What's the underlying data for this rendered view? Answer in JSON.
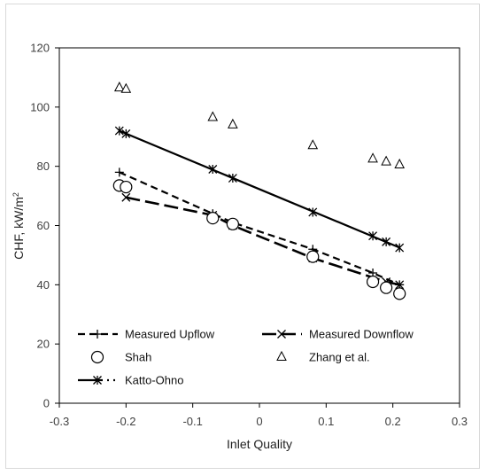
{
  "chart_data": {
    "type": "scatter",
    "title": "",
    "xlabel": "Inlet Quality",
    "ylabel": "CHF, kW/m",
    "ylabel_superscript": "2",
    "xlim": [
      -0.3,
      0.3
    ],
    "ylim": [
      0,
      120
    ],
    "xticks": [
      -0.3,
      -0.2,
      -0.1,
      0,
      0.1,
      0.2,
      0.3
    ],
    "xtick_labels": [
      "-0.3",
      "-0.2",
      "-0.1",
      "0",
      "0.1",
      "0.2",
      "0.3"
    ],
    "yticks": [
      0,
      20,
      40,
      60,
      80,
      100,
      120
    ],
    "ytick_labels": [
      "0",
      "20",
      "40",
      "60",
      "80",
      "100",
      "120"
    ],
    "grid": false,
    "legend_position": "bottom-inside",
    "series": [
      {
        "name": "Measured Upflow",
        "style": "short-dash-line-plus",
        "x": [
          -0.21,
          -0.07,
          -0.04,
          0.08,
          0.17,
          0.21
        ],
        "y": [
          78,
          64,
          61,
          52,
          44,
          40
        ]
      },
      {
        "name": "Measured Downflow",
        "style": "long-dash-line-x",
        "x": [
          -0.2,
          -0.07,
          -0.04,
          0.08,
          0.19,
          0.21
        ],
        "y": [
          69.5,
          63.5,
          60,
          49,
          41,
          40
        ]
      },
      {
        "name": "Shah",
        "style": "circle",
        "x": [
          -0.21,
          -0.2,
          -0.07,
          -0.04,
          0.08,
          0.17,
          0.19,
          0.21
        ],
        "y": [
          73.5,
          73,
          62.5,
          60.5,
          49.5,
          41,
          39,
          37
        ]
      },
      {
        "name": "Zhang et al.",
        "style": "triangle",
        "x": [
          -0.21,
          -0.2,
          -0.07,
          -0.04,
          0.08,
          0.17,
          0.19,
          0.21
        ],
        "y": [
          106.5,
          106,
          96.5,
          94,
          87,
          82.5,
          81.5,
          80.5
        ]
      },
      {
        "name": "Katto-Ohno",
        "style": "solid-line-asterisk",
        "x": [
          -0.21,
          -0.2,
          -0.07,
          -0.04,
          0.08,
          0.17,
          0.19,
          0.21
        ],
        "y": [
          92,
          91,
          79,
          76,
          64.5,
          56.5,
          54.5,
          52.5
        ]
      }
    ]
  }
}
